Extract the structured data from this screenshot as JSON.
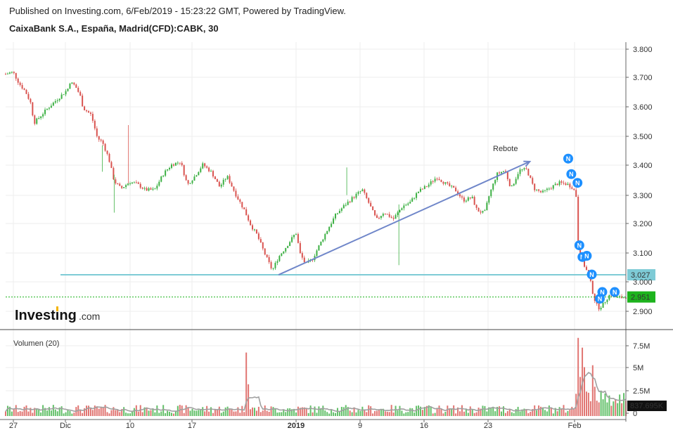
{
  "header": {
    "published": "Published on Investing.com, 6/Feb/2019 - 15:23:22 GMT, Powered by TradingView.",
    "instrument": "CaixaBank S.A., España, Madrid(CFD):CABK, 30"
  },
  "logo": {
    "brand": "Investing",
    "suffix": ".com"
  },
  "colors": {
    "up": "#3cb043",
    "down": "#d9534f",
    "support": "#7ecbd6",
    "current": "#1db31d",
    "trend": "#6f86c9",
    "news": "#1e90ff",
    "volume_ma": "#a0a0a0"
  },
  "chart_data": [
    {
      "type": "candlestick",
      "title": "CaixaBank S.A., España, Madrid(CFD):CABK, 30",
      "x_tick_labels": [
        "27",
        "Dic",
        "10",
        "17",
        "2019",
        "9",
        "16",
        "23",
        "Feb"
      ],
      "y_tick_labels": [
        "3.800",
        "3.700",
        "3.600",
        "3.500",
        "3.400",
        "3.300",
        "3.200",
        "3.100",
        "3.000",
        "2.900"
      ],
      "ylim": [
        2.86,
        3.83
      ],
      "price_path": [
        [
          0,
          3.715
        ],
        [
          0.012,
          3.722
        ],
        [
          0.022,
          3.682
        ],
        [
          0.032,
          3.655
        ],
        [
          0.04,
          3.618
        ],
        [
          0.046,
          3.548
        ],
        [
          0.055,
          3.568
        ],
        [
          0.068,
          3.598
        ],
        [
          0.085,
          3.632
        ],
        [
          0.1,
          3.662
        ],
        [
          0.103,
          3.688
        ],
        [
          0.112,
          3.675
        ],
        [
          0.12,
          3.642
        ],
        [
          0.125,
          3.598
        ],
        [
          0.138,
          3.575
        ],
        [
          0.148,
          3.495
        ],
        [
          0.156,
          3.482
        ],
        [
          0.166,
          3.428
        ],
        [
          0.175,
          3.348
        ],
        [
          0.186,
          3.322
        ],
        [
          0.2,
          3.345
        ],
        [
          0.212,
          3.338
        ],
        [
          0.225,
          3.318
        ],
        [
          0.24,
          3.318
        ],
        [
          0.255,
          3.375
        ],
        [
          0.268,
          3.405
        ],
        [
          0.282,
          3.415
        ],
        [
          0.293,
          3.335
        ],
        [
          0.305,
          3.365
        ],
        [
          0.318,
          3.405
        ],
        [
          0.332,
          3.378
        ],
        [
          0.345,
          3.328
        ],
        [
          0.357,
          3.365
        ],
        [
          0.372,
          3.298
        ],
        [
          0.385,
          3.248
        ],
        [
          0.395,
          3.198
        ],
        [
          0.405,
          3.165
        ],
        [
          0.418,
          3.098
        ],
        [
          0.43,
          3.042
        ],
        [
          0.44,
          3.088
        ],
        [
          0.452,
          3.122
        ],
        [
          0.468,
          3.172
        ],
        [
          0.475,
          3.098
        ],
        [
          0.484,
          3.062
        ],
        [
          0.495,
          3.082
        ],
        [
          0.505,
          3.125
        ],
        [
          0.518,
          3.178
        ],
        [
          0.532,
          3.232
        ],
        [
          0.545,
          3.262
        ],
        [
          0.56,
          3.292
        ],
        [
          0.575,
          3.318
        ],
        [
          0.585,
          3.275
        ],
        [
          0.598,
          3.215
        ],
        [
          0.61,
          3.242
        ],
        [
          0.625,
          3.218
        ],
        [
          0.64,
          3.262
        ],
        [
          0.652,
          3.275
        ],
        [
          0.665,
          3.312
        ],
        [
          0.68,
          3.332
        ],
        [
          0.695,
          3.362
        ],
        [
          0.71,
          3.338
        ],
        [
          0.725,
          3.318
        ],
        [
          0.738,
          3.282
        ],
        [
          0.752,
          3.292
        ],
        [
          0.76,
          3.248
        ],
        [
          0.772,
          3.238
        ],
        [
          0.78,
          3.302
        ],
        [
          0.792,
          3.372
        ],
        [
          0.805,
          3.385
        ],
        [
          0.815,
          3.322
        ],
        [
          0.828,
          3.385
        ],
        [
          0.84,
          3.388
        ],
        [
          0.852,
          3.322
        ],
        [
          0.865,
          3.308
        ],
        [
          0.878,
          3.325
        ],
        [
          0.892,
          3.342
        ],
        [
          0.905,
          3.338
        ],
        [
          0.915,
          3.325
        ],
        [
          0.92,
          3.295
        ],
        [
          0.923,
          3.148
        ],
        [
          0.928,
          3.078
        ],
        [
          0.935,
          3.05
        ],
        [
          0.942,
          3.012
        ],
        [
          0.948,
          2.952
        ],
        [
          0.955,
          2.912
        ],
        [
          0.962,
          2.922
        ],
        [
          0.968,
          2.942
        ],
        [
          0.975,
          2.962
        ],
        [
          0.985,
          2.948
        ],
        [
          1.0,
          2.951
        ]
      ],
      "annotations": {
        "trendline_label": "Rebote",
        "trendline_from": [
          0.44,
          3.027
        ],
        "trendline_to": [
          0.845,
          3.415
        ],
        "support_level": 3.027,
        "support_label": "3.027",
        "current_price": 2.951,
        "current_label": "2.951",
        "news_markers": [
          [
            0.907,
            3.425
          ],
          [
            0.912,
            3.372
          ],
          [
            0.922,
            3.342
          ],
          [
            0.925,
            3.128
          ],
          [
            0.93,
            3.088
          ],
          [
            0.937,
            3.092
          ],
          [
            0.945,
            3.028
          ],
          [
            0.962,
            2.968
          ],
          [
            0.958,
            2.945
          ],
          [
            0.982,
            2.968
          ]
        ],
        "news_label": "N"
      }
    },
    {
      "type": "bar",
      "title": "Volumen (20)",
      "y_tick_labels": [
        "7.5M",
        "5M",
        "2.5M",
        "0"
      ],
      "ylim": [
        0,
        8.2
      ],
      "current_volume_label": "837.695K",
      "ma_level_normal": 0.65,
      "spikes": [
        [
          0.389,
          6.5
        ],
        [
          0.923,
          8.0
        ],
        [
          0.929,
          7.0
        ],
        [
          0.934,
          5.0
        ],
        [
          0.945,
          5.2
        ],
        [
          0.951,
          3.0
        ],
        [
          0.96,
          2.6
        ],
        [
          0.972,
          2.1
        ],
        [
          0.99,
          2.2
        ]
      ]
    }
  ]
}
